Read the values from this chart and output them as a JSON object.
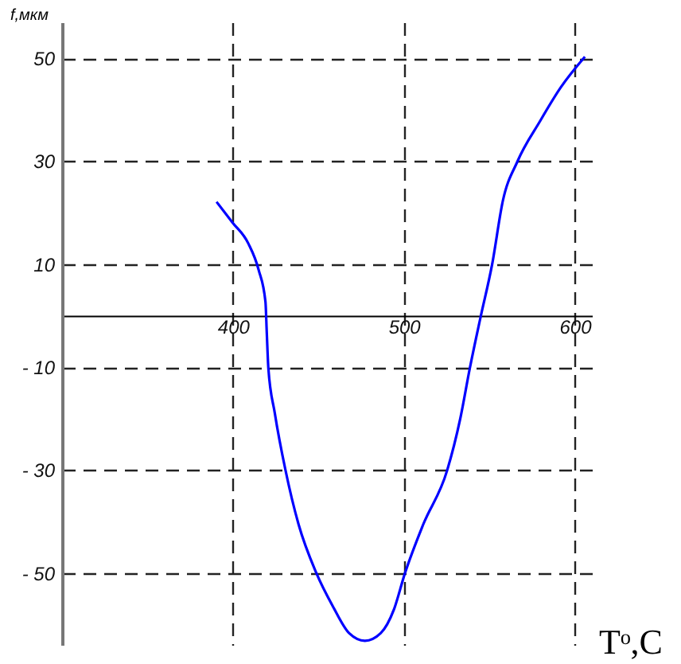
{
  "chart_data": {
    "type": "line",
    "xlabel": "Tᵒ,C",
    "ylabel": "f,мкм",
    "x": [
      390.4,
      399.7,
      409,
      415,
      419,
      419.8,
      420.7,
      424.5,
      430.7,
      438.4,
      448.6,
      458.6,
      467.9,
      477.2,
      486.5,
      494.2,
      500.5,
      511.3,
      525.3,
      533,
      538.6,
      544.8,
      551.6,
      557.9,
      566.5,
      579.5,
      591.9,
      605.9
    ],
    "series": [
      {
        "color": "#0000ff",
        "values": [
          22.1,
          18.1,
          14.0,
          8.9,
          2.7,
          -3.5,
          -10.2,
          -19,
          -30,
          -40.6,
          -49.9,
          -56.6,
          -61.7,
          -63.2,
          -61.7,
          -57.1,
          -50.2,
          -40.6,
          -30.1,
          -20,
          -10.2,
          -0.4,
          9.9,
          22.3,
          30,
          37.7,
          44.4,
          50.3
        ]
      }
    ],
    "xlim": [
      300,
      610
    ],
    "ylim": [
      -64,
      57
    ],
    "xticks": [
      400,
      500,
      600
    ],
    "yticks": [
      50,
      30,
      10,
      {
        "value": -10,
        "label": "- 10"
      },
      {
        "value": -30,
        "label": "- 30"
      },
      {
        "value": -50,
        "label": "- 50"
      }
    ],
    "grid": true,
    "line_style": "solid"
  }
}
